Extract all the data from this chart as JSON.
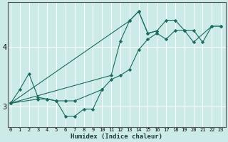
{
  "xlabel": "Humidex (Indice chaleur)",
  "bg_color": "#cceae8",
  "line_color": "#1a6b60",
  "x_ticks": [
    0,
    1,
    2,
    3,
    4,
    5,
    6,
    7,
    8,
    9,
    10,
    11,
    12,
    13,
    14,
    15,
    16,
    17,
    18,
    19,
    20,
    21,
    22,
    23
  ],
  "y_ticks": [
    3,
    4
  ],
  "ylim": [
    2.65,
    4.75
  ],
  "xlim": [
    -0.3,
    23.5
  ],
  "series": [
    {
      "x": [
        0,
        1,
        2,
        3,
        4,
        5,
        6,
        7,
        8,
        9,
        10,
        11,
        12,
        13,
        14,
        15,
        16,
        17,
        18,
        19,
        20,
        21,
        22,
        23
      ],
      "y": [
        3.05,
        3.28,
        3.55,
        3.15,
        3.12,
        3.09,
        2.83,
        2.83,
        2.95,
        2.95,
        3.28,
        3.45,
        3.52,
        3.62,
        3.95,
        4.13,
        4.23,
        4.13,
        4.28,
        4.28,
        4.28,
        4.08,
        4.35,
        4.35
      ]
    },
    {
      "x": [
        0,
        3,
        4,
        5,
        6,
        7,
        10
      ],
      "y": [
        3.05,
        3.12,
        3.12,
        3.09,
        3.09,
        3.09,
        3.28
      ]
    },
    {
      "x": [
        0,
        11,
        12,
        13,
        14,
        15,
        16,
        17,
        18,
        19,
        20,
        22,
        23
      ],
      "y": [
        3.05,
        3.52,
        4.1,
        4.44,
        4.6,
        4.23,
        4.27,
        4.45,
        4.45,
        4.28,
        4.08,
        4.35,
        4.35
      ]
    },
    {
      "x": [
        0,
        13,
        14,
        15,
        16
      ],
      "y": [
        3.05,
        4.44,
        4.6,
        4.23,
        4.27
      ]
    }
  ]
}
